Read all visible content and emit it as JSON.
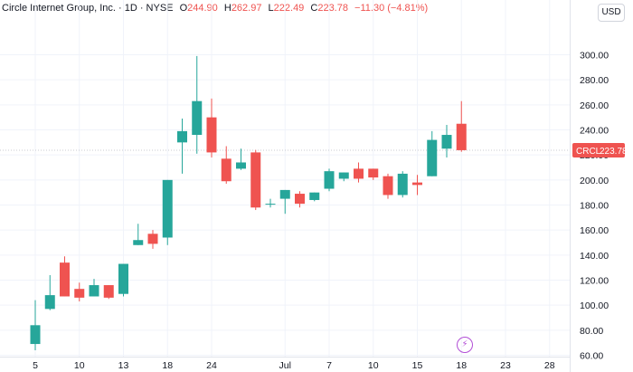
{
  "legend": {
    "symbol": "Circle Internet Group, Inc. · 1D · NYSE",
    "o_label": "O",
    "o_value": "244.90",
    "h_label": "H",
    "h_value": "262.97",
    "l_label": "L",
    "l_value": "222.49",
    "c_label": "C",
    "c_value": "223.78",
    "change": "−11.30 (−4.81%)"
  },
  "currency_button": "USD",
  "price_tag": {
    "ticker": "CRCL",
    "price": "223.78"
  },
  "icons": {
    "event_marker": "lightning-icon"
  },
  "colors": {
    "up": "#26a69a",
    "down": "#ef5350",
    "grid": "#f0f3fa",
    "axis_text": "#131722"
  },
  "chart_data": {
    "type": "candlestick",
    "title": "Circle Internet Group, Inc. · 1D · NYSE",
    "ylim": [
      50,
      305
    ],
    "grid": true,
    "y_ticks": [
      "60.00",
      "80.00",
      "100.00",
      "120.00",
      "140.00",
      "160.00",
      "180.00",
      "200.00",
      "220.00",
      "240.00",
      "260.00",
      "280.00",
      "300.00"
    ],
    "x_ticks": [
      {
        "label": "5",
        "bar": 0
      },
      {
        "label": "10",
        "bar": 3
      },
      {
        "label": "13",
        "bar": 6
      },
      {
        "label": "18",
        "bar": 9
      },
      {
        "label": "24",
        "bar": 12
      },
      {
        "label": "Jul",
        "bar": 17
      },
      {
        "label": "7",
        "bar": 20
      },
      {
        "label": "10",
        "bar": 23
      },
      {
        "label": "15",
        "bar": 26
      },
      {
        "label": "18",
        "bar": 29
      },
      {
        "label": "23",
        "bar": 32
      },
      {
        "label": "28",
        "bar": 35
      }
    ],
    "candles": [
      {
        "o": 69,
        "h": 104,
        "l": 64,
        "c": 84
      },
      {
        "o": 97,
        "h": 124,
        "l": 96,
        "c": 108
      },
      {
        "o": 134,
        "h": 139,
        "l": 107,
        "c": 107
      },
      {
        "o": 113,
        "h": 118,
        "l": 103,
        "c": 106
      },
      {
        "o": 107,
        "h": 121,
        "l": 107,
        "c": 116
      },
      {
        "o": 116,
        "h": 116,
        "l": 105,
        "c": 106
      },
      {
        "o": 109,
        "h": 133,
        "l": 107,
        "c": 133
      },
      {
        "o": 148,
        "h": 165,
        "l": 148,
        "c": 152
      },
      {
        "o": 157,
        "h": 160,
        "l": 145,
        "c": 149
      },
      {
        "o": 154,
        "h": 200,
        "l": 148,
        "c": 200
      },
      {
        "o": 230,
        "h": 249,
        "l": 205,
        "c": 239
      },
      {
        "o": 236,
        "h": 299,
        "l": 221,
        "c": 263
      },
      {
        "o": 250,
        "h": 265,
        "l": 218,
        "c": 222
      },
      {
        "o": 217,
        "h": 227,
        "l": 197,
        "c": 199
      },
      {
        "o": 209,
        "h": 225,
        "l": 208,
        "c": 214
      },
      {
        "o": 222,
        "h": 224,
        "l": 176,
        "c": 178
      },
      {
        "o": 181,
        "h": 185,
        "l": 178,
        "c": 181
      },
      {
        "o": 185,
        "h": 192,
        "l": 173,
        "c": 192
      },
      {
        "o": 189,
        "h": 191,
        "l": 178,
        "c": 181
      },
      {
        "o": 184,
        "h": 190,
        "l": 183,
        "c": 190
      },
      {
        "o": 193,
        "h": 209,
        "l": 191,
        "c": 207
      },
      {
        "o": 201,
        "h": 206,
        "l": 199,
        "c": 206
      },
      {
        "o": 209,
        "h": 214,
        "l": 198,
        "c": 201
      },
      {
        "o": 209,
        "h": 208,
        "l": 200,
        "c": 202
      },
      {
        "o": 203,
        "h": 205,
        "l": 185,
        "c": 188
      },
      {
        "o": 188,
        "h": 207,
        "l": 186,
        "c": 205
      },
      {
        "o": 198,
        "h": 204,
        "l": 188,
        "c": 196
      },
      {
        "o": 203,
        "h": 239,
        "l": 203,
        "c": 232
      },
      {
        "o": 225,
        "h": 244,
        "l": 218,
        "c": 236
      },
      {
        "o": 244.9,
        "h": 262.97,
        "l": 222.49,
        "c": 223.78
      }
    ]
  }
}
